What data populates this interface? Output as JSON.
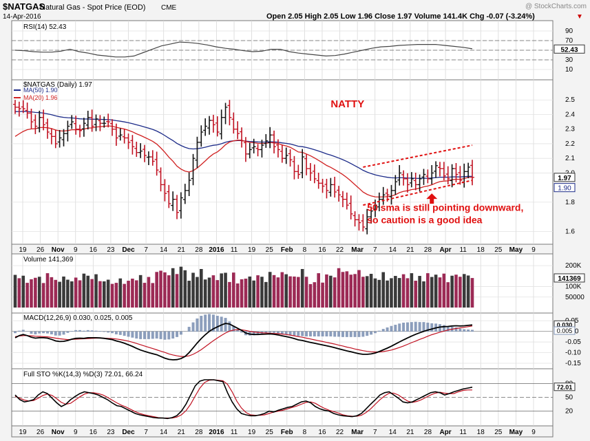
{
  "header": {
    "symbol": "$NATGAS",
    "name": "Natural Gas - Spot Price (EOD)",
    "exchange": "CME",
    "date": "14-Apr-2016",
    "watermark": "@ StockCharts.com",
    "ohlc": "Open 2.05  High 2.05  Low 1.96  Close 1.97  Volume 141.4K  Chg -0.07 (-3.24%)",
    "chg_arrow": "▼",
    "chg_color": "#cc0000"
  },
  "colors": {
    "up": "#111111",
    "down": "#c01020",
    "ma50": "#1b2a88",
    "ma20": "#d02020",
    "vol_up": "#3a3a3a",
    "vol_down": "#9c2a55",
    "annotation": "#e01010"
  },
  "chart_data": [
    {
      "id": "rsi",
      "type": "line",
      "title": "RSI(14) 52.43",
      "yticks": [
        90,
        70,
        50,
        30,
        10
      ],
      "ylim": [
        0,
        100
      ],
      "reference_lines": [
        70,
        50,
        30
      ],
      "last_value_label": "52.43",
      "series": [
        {
          "values": [
            50,
            49,
            47,
            46,
            46,
            48,
            52,
            47,
            44,
            40,
            38,
            36,
            36,
            38,
            45,
            52,
            59,
            63,
            67,
            66,
            64,
            61,
            57,
            54,
            52,
            49,
            47,
            48,
            52,
            52,
            47,
            44,
            42,
            40,
            38,
            39,
            42,
            46,
            50,
            54,
            57,
            58,
            60,
            61,
            62,
            62,
            62,
            60,
            58,
            56,
            53
          ]
        }
      ]
    },
    {
      "id": "price",
      "type": "ohlc",
      "title": "$NATGAS (Daily) 1.97",
      "legend": [
        {
          "label": "MA(50) 1.90",
          "color": "#1b2a88"
        },
        {
          "label": "MA(20) 1.96",
          "color": "#d02020"
        }
      ],
      "ylim": [
        1.55,
        2.6
      ],
      "yticks": [
        2.5,
        2.4,
        2.3,
        2.2,
        2.1,
        2.0,
        1.8,
        1.6
      ],
      "last_price_label": "1.97",
      "ma50_label": "1.90",
      "x_labels": [
        "19",
        "26",
        "Nov",
        "9",
        "16",
        "23",
        "Dec",
        "7",
        "14",
        "21",
        "28",
        "2016",
        "11",
        "19",
        "25",
        "Feb",
        "8",
        "16",
        "22",
        "Mar",
        "7",
        "14",
        "21",
        "28",
        "Apr",
        "11",
        "18",
        "25",
        "May",
        "9"
      ],
      "x_label_bold": [
        "Nov",
        "Dec",
        "2016",
        "Feb",
        "Mar",
        "Apr",
        "May"
      ],
      "close": [
        2.45,
        2.44,
        2.44,
        2.41,
        2.35,
        2.32,
        2.38,
        2.33,
        2.28,
        2.25,
        2.2,
        2.24,
        2.27,
        2.32,
        2.35,
        2.3,
        2.29,
        2.34,
        2.38,
        2.32,
        2.37,
        2.34,
        2.34,
        2.35,
        2.3,
        2.24,
        2.26,
        2.24,
        2.21,
        2.18,
        2.14,
        2.15,
        2.12,
        2.11,
        2.08,
        2.02,
        1.92,
        1.86,
        1.79,
        1.82,
        1.73,
        1.83,
        1.88,
        1.95,
        2.1,
        2.21,
        2.28,
        2.32,
        2.36,
        2.33,
        2.28,
        2.38,
        2.45,
        2.38,
        2.3,
        2.27,
        2.22,
        2.13,
        2.16,
        2.18,
        2.16,
        2.19,
        2.22,
        2.26,
        2.18,
        2.16,
        2.1,
        2.12,
        2.09,
        2.01,
        1.99,
        2.11,
        2.03,
        2.0,
        1.96,
        1.93,
        1.91,
        1.88,
        1.92,
        1.87,
        1.85,
        1.82,
        1.78,
        1.72,
        1.68,
        1.66,
        1.63,
        1.7,
        1.74,
        1.78,
        1.82,
        1.85,
        1.85,
        1.88,
        1.94,
        2.0,
        1.96,
        1.92,
        1.96,
        1.92,
        1.96,
        1.99,
        1.96,
        2.0,
        2.05,
        2.03,
        1.98,
        1.96,
        2.03,
        1.99,
        1.95,
        2.01,
        2.04,
        1.97
      ],
      "annotations": [
        {
          "text": "NATTY",
          "data_x": 78,
          "data_y": 2.45,
          "size": "medium"
        },
        {
          "text": "50 sma is still pointing downward,",
          "data_x": 87,
          "data_y": 1.74,
          "size": "small"
        },
        {
          "text": "so caution is a good idea",
          "data_x": 87,
          "data_y": 1.655,
          "size": "small"
        }
      ],
      "channel_upper": {
        "from": [
          86,
          2.04
        ],
        "to": [
          113,
          2.19
        ]
      },
      "channel_lower": {
        "from": [
          86,
          1.78
        ],
        "to": [
          113,
          1.95
        ]
      },
      "arrow_at": {
        "data_x": 103,
        "data_y": 1.86
      }
    },
    {
      "id": "volume",
      "type": "bar",
      "title": "Volume 141,369",
      "ylim": [
        0,
        230000
      ],
      "yticks": [
        {
          "v": 200000,
          "l": "200K"
        },
        {
          "v": 100000,
          "l": "100K"
        },
        {
          "v": 50000,
          "l": "50000"
        }
      ],
      "last_value_label": "141369",
      "values": [
        156000,
        140000,
        152000,
        118000,
        135000,
        142000,
        147000,
        117000,
        164000,
        145000,
        132000,
        123000,
        148000,
        133000,
        125000,
        143000,
        130000,
        162000,
        152000,
        136000,
        159000,
        126000,
        125000,
        133000,
        113000,
        118000,
        139000,
        113000,
        128000,
        138000,
        130000,
        155000,
        118000,
        146000,
        117000,
        170000,
        176000,
        168000,
        154000,
        188000,
        160000,
        195000,
        178000,
        128000,
        166000,
        146000,
        184000,
        134000,
        143000,
        154000,
        131000,
        163000,
        166000,
        122000,
        167000,
        115000,
        135000,
        138000,
        148000,
        129000,
        154000,
        147000,
        122000,
        170000,
        155000,
        144000,
        169000,
        159000,
        149000,
        148000,
        146000,
        184000,
        147000,
        112000,
        121000,
        164000,
        119000,
        158000,
        152000,
        144000,
        188000,
        170000,
        173000,
        157000,
        160000,
        179000,
        147000,
        150000,
        161000,
        139000,
        132000,
        169000,
        129000,
        140000,
        151000,
        141000,
        159000,
        140000,
        164000,
        128000,
        151000,
        125000,
        164000,
        146000,
        157000,
        144000,
        162000,
        121000,
        152000,
        157000,
        147000,
        160000,
        153000,
        141000
      ]
    },
    {
      "id": "macd",
      "type": "line",
      "title": "MACD(12,26,9) 0.030, 0.025, 0.005",
      "ylim": [
        -0.15,
        0.06
      ],
      "yticks": [
        {
          "v": 0.05,
          "l": "0.05"
        },
        {
          "v": 0.0,
          "l": "0.00"
        },
        {
          "v": -0.05,
          "l": "-0.05"
        },
        {
          "v": -0.1,
          "l": "-0.10"
        },
        {
          "v": -0.15,
          "l": "-0.15"
        }
      ],
      "last_value_labels": [
        "0.030",
        "0.005"
      ],
      "series": [
        {
          "values": [
            -0.03,
            -0.02,
            -0.015,
            -0.02,
            -0.028,
            -0.032,
            -0.03,
            -0.03,
            -0.032,
            -0.038,
            -0.045,
            -0.048,
            -0.047,
            -0.043,
            -0.037,
            -0.033,
            -0.032,
            -0.033,
            -0.03,
            -0.03,
            -0.03,
            -0.031,
            -0.033,
            -0.036,
            -0.039,
            -0.045,
            -0.05,
            -0.056,
            -0.063,
            -0.071,
            -0.08,
            -0.088,
            -0.094,
            -0.1,
            -0.105,
            -0.11,
            -0.118,
            -0.126,
            -0.132,
            -0.134,
            -0.133,
            -0.128,
            -0.118,
            -0.1,
            -0.078,
            -0.055,
            -0.034,
            -0.016,
            0.0,
            0.012,
            0.021,
            0.03,
            0.037,
            0.034,
            0.024,
            0.014,
            0.004,
            -0.008,
            -0.013,
            -0.015,
            -0.015,
            -0.014,
            -0.013,
            -0.012,
            -0.014,
            -0.017,
            -0.021,
            -0.025,
            -0.029,
            -0.034,
            -0.04,
            -0.043,
            -0.048,
            -0.052,
            -0.056,
            -0.06,
            -0.064,
            -0.068,
            -0.072,
            -0.077,
            -0.082,
            -0.087,
            -0.092,
            -0.096,
            -0.101,
            -0.105,
            -0.108,
            -0.108,
            -0.106,
            -0.102,
            -0.095,
            -0.087,
            -0.079,
            -0.07,
            -0.06,
            -0.05,
            -0.04,
            -0.031,
            -0.022,
            -0.014,
            -0.007,
            0.0,
            0.006,
            0.011,
            0.016,
            0.02,
            0.022,
            0.023,
            0.025,
            0.026,
            0.025,
            0.026,
            0.028,
            0.03
          ]
        },
        {
          "values": [
            -0.025,
            -0.022,
            -0.02,
            -0.02,
            -0.021,
            -0.023,
            -0.024,
            -0.025,
            -0.026,
            -0.029,
            -0.032,
            -0.035,
            -0.037,
            -0.039,
            -0.038,
            -0.037,
            -0.036,
            -0.035,
            -0.034,
            -0.033,
            -0.032,
            -0.032,
            -0.032,
            -0.033,
            -0.034,
            -0.036,
            -0.039,
            -0.042,
            -0.046,
            -0.051,
            -0.057,
            -0.063,
            -0.069,
            -0.075,
            -0.081,
            -0.087,
            -0.093,
            -0.099,
            -0.106,
            -0.111,
            -0.115,
            -0.118,
            -0.118,
            -0.115,
            -0.108,
            -0.098,
            -0.086,
            -0.072,
            -0.058,
            -0.044,
            -0.031,
            -0.019,
            -0.008,
            0.001,
            0.006,
            0.008,
            0.007,
            0.004,
            0.0,
            -0.003,
            -0.005,
            -0.007,
            -0.008,
            -0.009,
            -0.01,
            -0.011,
            -0.013,
            -0.015,
            -0.018,
            -0.021,
            -0.025,
            -0.028,
            -0.032,
            -0.036,
            -0.04,
            -0.044,
            -0.048,
            -0.052,
            -0.056,
            -0.06,
            -0.065,
            -0.069,
            -0.074,
            -0.078,
            -0.083,
            -0.087,
            -0.091,
            -0.094,
            -0.096,
            -0.097,
            -0.097,
            -0.095,
            -0.092,
            -0.088,
            -0.082,
            -0.076,
            -0.069,
            -0.061,
            -0.053,
            -0.046,
            -0.038,
            -0.031,
            -0.023,
            -0.016,
            -0.01,
            -0.004,
            0.001,
            0.006,
            0.01,
            0.013,
            0.016,
            0.019,
            0.022,
            0.025
          ]
        }
      ]
    },
    {
      "id": "sto",
      "type": "line",
      "title": "Full STO %K(14,3) %D(3) 72.01, 66.24",
      "ylim": [
        0,
        100
      ],
      "yticks": [
        80,
        50,
        20
      ],
      "reference_lines": [
        80,
        50,
        20
      ],
      "last_value_label": "72.01",
      "series": [
        {
          "values": [
            55,
            45,
            40,
            42,
            45,
            55,
            62,
            58,
            48,
            38,
            30,
            35,
            45,
            52,
            58,
            62,
            60,
            58,
            55,
            50,
            45,
            38,
            32,
            30,
            25,
            20,
            15,
            12,
            10,
            8,
            6,
            5,
            5,
            4,
            6,
            10,
            20,
            35,
            55,
            75,
            85,
            88,
            88,
            88,
            86,
            84,
            60,
            40,
            25,
            15,
            12,
            10,
            10,
            12,
            15,
            20,
            18,
            22,
            25,
            28,
            30,
            35,
            40,
            42,
            38,
            30,
            25,
            22,
            20,
            15,
            12,
            10,
            9,
            8,
            10,
            15,
            25,
            35,
            45,
            55,
            60,
            62,
            55,
            48,
            40,
            38,
            40,
            45,
            50,
            55,
            60,
            62,
            60,
            55,
            58,
            62,
            65,
            68,
            70,
            72
          ]
        },
        {
          "values": [
            52,
            48,
            44,
            42,
            43,
            48,
            54,
            57,
            54,
            47,
            39,
            35,
            37,
            44,
            51,
            57,
            60,
            60,
            58,
            55,
            50,
            44,
            38,
            33,
            29,
            24,
            19,
            15,
            12,
            10,
            8,
            6,
            5,
            5,
            5,
            7,
            12,
            21,
            35,
            53,
            70,
            82,
            87,
            88,
            87,
            86,
            78,
            62,
            42,
            27,
            17,
            12,
            11,
            11,
            12,
            15,
            18,
            20,
            22,
            25,
            28,
            31,
            35,
            39,
            40,
            37,
            31,
            26,
            22,
            19,
            16,
            12,
            10,
            9,
            9,
            11,
            17,
            25,
            35,
            45,
            53,
            59,
            59,
            55,
            48,
            42,
            39,
            41,
            45,
            50,
            55,
            59,
            61,
            59,
            58,
            58,
            62,
            65,
            66,
            66
          ]
        }
      ]
    }
  ],
  "x_labels_bottom": [
    "19",
    "26",
    "Nov",
    "9",
    "16",
    "23",
    "Dec",
    "7",
    "14",
    "21",
    "28",
    "2016",
    "11",
    "19",
    "25",
    "Feb",
    "8",
    "16",
    "22",
    "Mar",
    "7",
    "14",
    "21",
    "28",
    "Apr",
    "11",
    "18",
    "25",
    "May",
    "9"
  ]
}
